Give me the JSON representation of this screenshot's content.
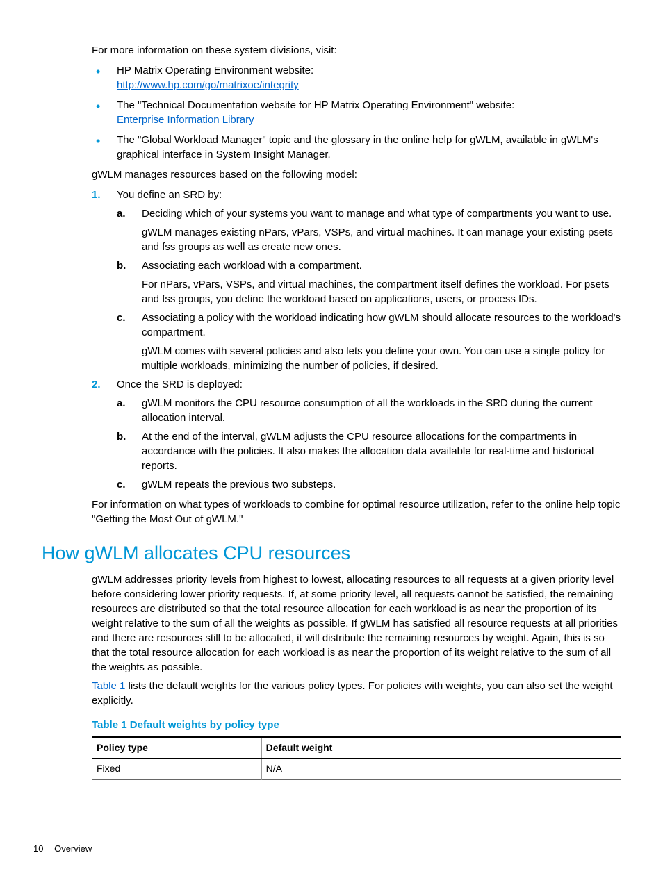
{
  "intro": "For more information on these system divisions, visit:",
  "bullets": [
    {
      "lines": [
        {
          "text": "HP Matrix Operating Environment website:"
        },
        {
          "link": "http://www.hp.com/go/matrixoe/integrity"
        }
      ]
    },
    {
      "lines": [
        {
          "text": "The \"Technical Documentation website for HP Matrix Operating Environment\" website:"
        },
        {
          "link": "Enterprise Information Library"
        }
      ]
    },
    {
      "lines": [
        {
          "text": "The \"Global Workload Manager\" topic and the glossary in the online help for gWLM, available in gWLM's graphical interface in System Insight Manager."
        }
      ]
    }
  ],
  "model_intro": "gWLM manages resources based on the following model:",
  "steps": [
    {
      "num": "1.",
      "text": "You define an SRD by:",
      "subs": [
        {
          "m": "a.",
          "paras": [
            "Deciding which of your systems you want to manage and what type of compartments you want to use.",
            "gWLM manages existing nPars, vPars, VSPs, and virtual machines. It can manage your existing psets and fss groups as well as create new ones."
          ]
        },
        {
          "m": "b.",
          "paras": [
            "Associating each workload with a compartment.",
            "For nPars, vPars, VSPs, and virtual machines, the compartment itself defines the workload. For psets and fss groups, you define the workload based on applications, users, or process IDs."
          ]
        },
        {
          "m": "c.",
          "paras": [
            "Associating a policy with the workload indicating how gWLM should allocate resources to the workload's compartment.",
            "gWLM comes with several policies and also lets you define your own. You can use a single policy for multiple workloads, minimizing the number of policies, if desired."
          ]
        }
      ]
    },
    {
      "num": "2.",
      "text": "Once the SRD is deployed:",
      "subs": [
        {
          "m": "a.",
          "paras": [
            "gWLM monitors the CPU resource consumption of all the workloads in the SRD during the current allocation interval."
          ]
        },
        {
          "m": "b.",
          "paras": [
            "At the end of the interval, gWLM adjusts the CPU resource allocations for the compartments in accordance with the policies. It also makes the allocation data available for real-time and historical reports."
          ]
        },
        {
          "m": "c.",
          "paras": [
            "gWLM repeats the previous two substeps."
          ]
        }
      ]
    }
  ],
  "outro": "For information on what types of workloads to combine for optimal resource utilization, refer to the online help topic \"Getting the Most Out of gWLM.\"",
  "heading": "How gWLM allocates CPU resources",
  "alloc_para": "gWLM addresses priority levels from highest to lowest, allocating resources to all requests at a given priority level before considering lower priority requests. If, at some priority level, all requests cannot be satisfied, the remaining resources are distributed so that the total resource allocation for each workload is as near the proportion of its weight relative to the sum of all the weights as possible. If gWLM has satisfied all resource requests at all priorities and there are resources still to be allocated, it will distribute the remaining resources by weight. Again, this is so that the total resource allocation for each workload is as near the proportion of its weight relative to the sum of all the weights as possible.",
  "table_ref_para_pre": "Table 1",
  "table_ref_para_post": " lists the default weights for the various policy types. For policies with weights, you can also set the weight explicitly.",
  "table_caption": "Table 1 Default weights by policy type",
  "table": {
    "columns": [
      "Policy type",
      "Default weight"
    ],
    "rows": [
      [
        "Fixed",
        "N/A"
      ]
    ]
  },
  "footer": {
    "page": "10",
    "section": "Overview"
  }
}
